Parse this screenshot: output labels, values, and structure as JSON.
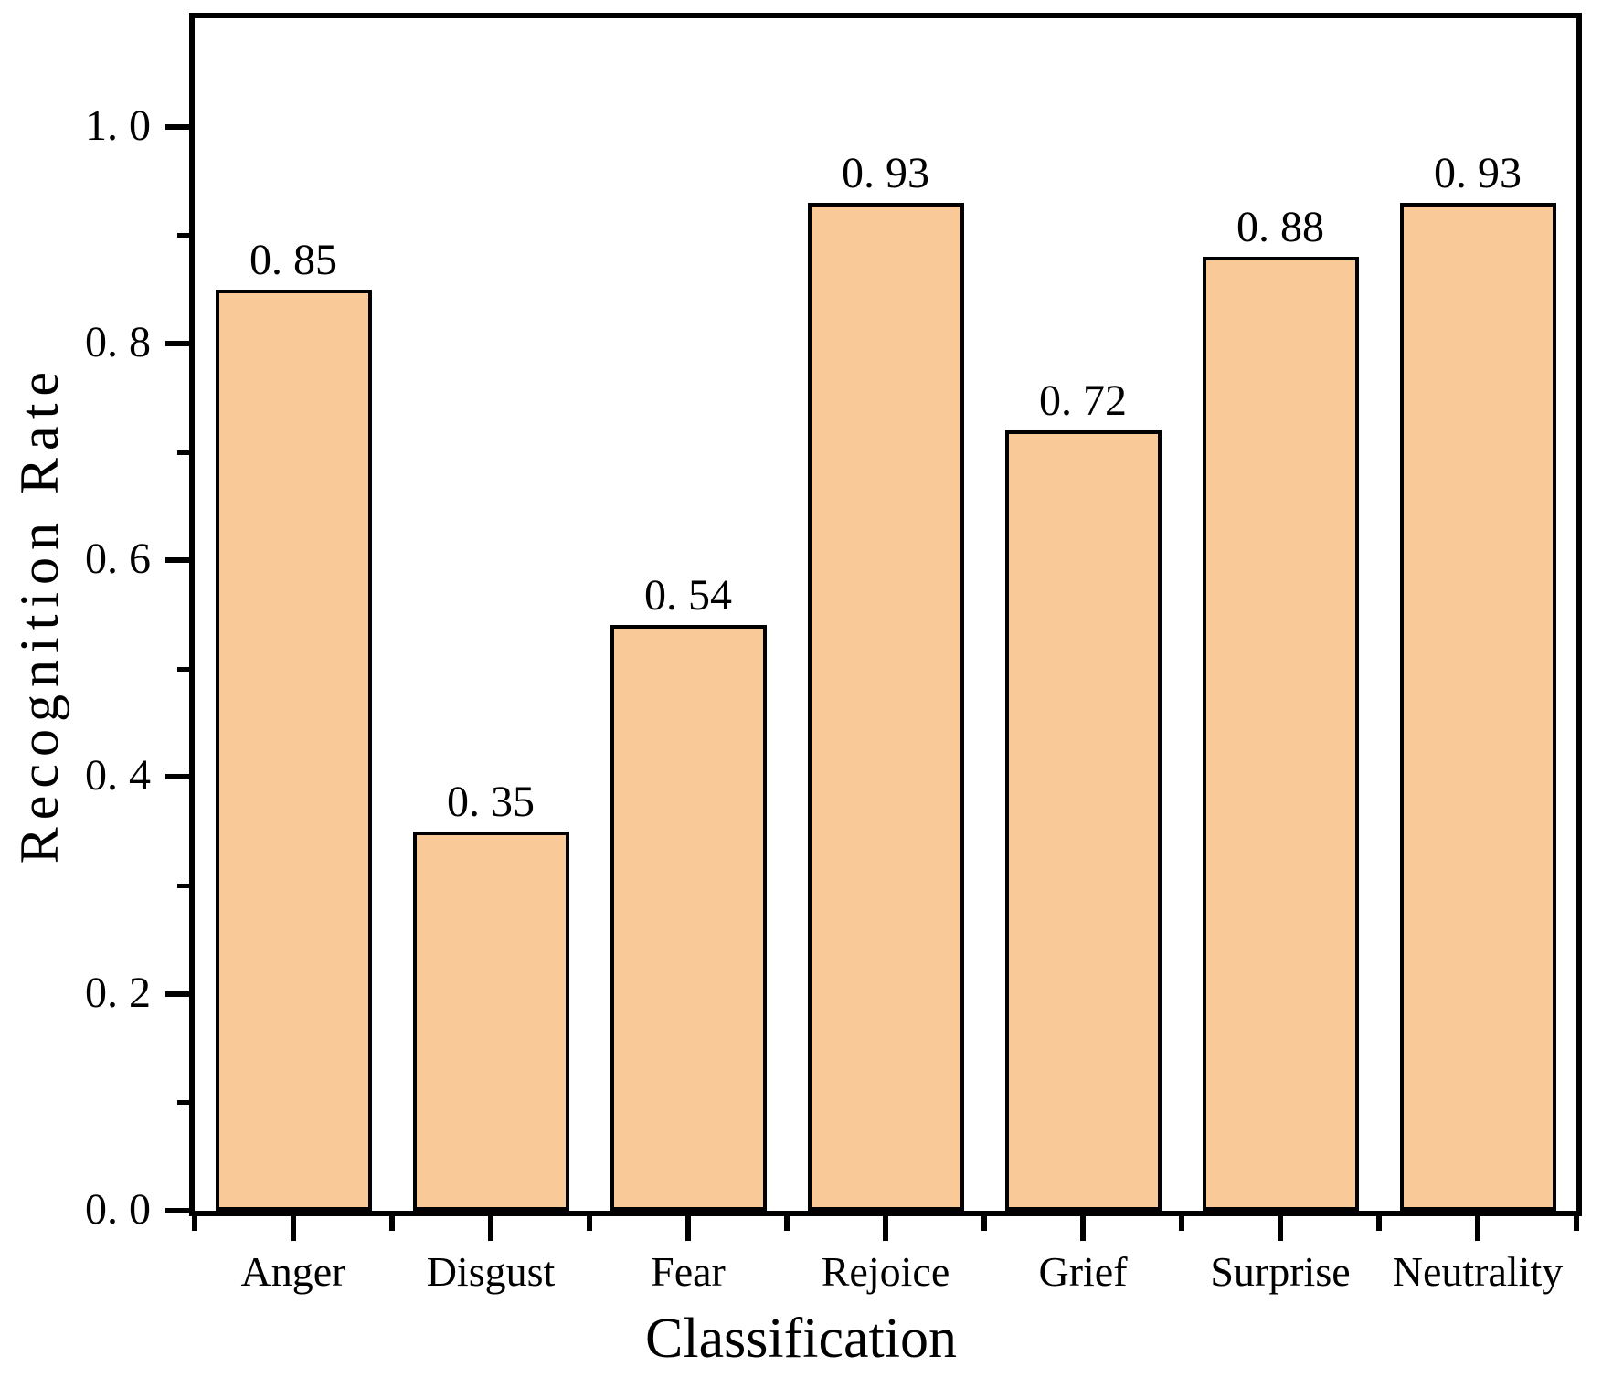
{
  "chart_data": {
    "type": "bar",
    "title": "",
    "xlabel": "Classification",
    "ylabel": "Recognition Rate",
    "categories": [
      "Anger",
      "Disgust",
      "Fear",
      "Rejoice",
      "Grief",
      "Surprise",
      "Neutrality"
    ],
    "values": [
      0.85,
      0.35,
      0.54,
      0.93,
      0.72,
      0.88,
      0.93
    ],
    "bar_value_labels": [
      "0. 85",
      "0. 35",
      "0. 54",
      "0. 93",
      "0. 72",
      "0. 88",
      "0. 93"
    ],
    "ylim": [
      0,
      1.1
    ],
    "yticks_major": [
      0,
      0.2,
      0.4,
      0.6,
      0.8,
      1.0
    ],
    "ytick_labels": [
      "0. 0",
      "0. 2",
      "0. 4",
      "0. 6",
      "0. 8",
      "1. 0"
    ],
    "yticks_minor": [
      0.1,
      0.3,
      0.5,
      0.7,
      0.9
    ],
    "grid": false,
    "legend": null,
    "frame": "full-box",
    "tick_direction": "out",
    "colors": {
      "bar_fill": "#FAC998",
      "bar_border": "#000000",
      "axis": "#000000",
      "text": "#000000",
      "background": "#FFFFFF"
    }
  }
}
